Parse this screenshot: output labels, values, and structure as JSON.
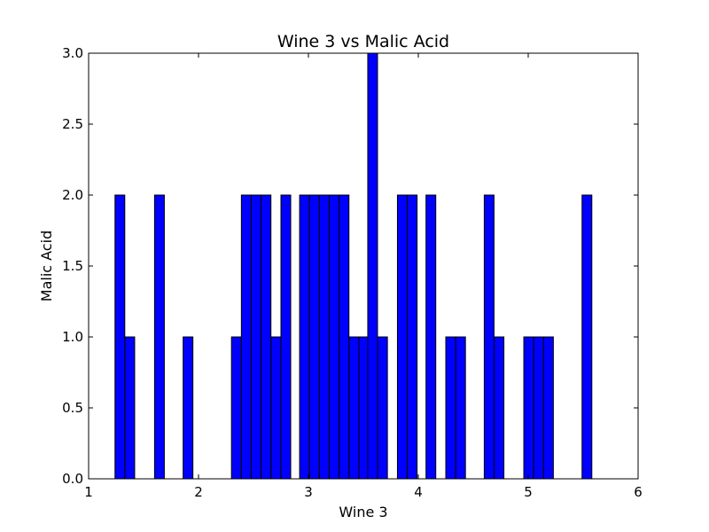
{
  "chart_data": {
    "type": "bar",
    "title": "Wine 3 vs Malic Acid",
    "xlabel": "Wine 3",
    "ylabel": "Malic Acid",
    "xlim": [
      1,
      6
    ],
    "ylim": [
      0,
      3
    ],
    "bin_width": 0.0889,
    "x_ticks": [
      "1",
      "2",
      "3",
      "4",
      "5",
      "6"
    ],
    "y_ticks": [
      "0.0",
      "0.5",
      "1.0",
      "1.5",
      "2.0",
      "2.5",
      "3.0"
    ],
    "grid": false,
    "bar_color": "#0000ff",
    "bins": [
      {
        "x": 1.24,
        "value": 2
      },
      {
        "x": 1.33,
        "value": 1
      },
      {
        "x": 1.6,
        "value": 2
      },
      {
        "x": 1.86,
        "value": 1
      },
      {
        "x": 2.3,
        "value": 1
      },
      {
        "x": 2.39,
        "value": 2
      },
      {
        "x": 2.48,
        "value": 2
      },
      {
        "x": 2.57,
        "value": 2
      },
      {
        "x": 2.66,
        "value": 1
      },
      {
        "x": 2.75,
        "value": 2
      },
      {
        "x": 2.92,
        "value": 2
      },
      {
        "x": 3.01,
        "value": 2
      },
      {
        "x": 3.1,
        "value": 2
      },
      {
        "x": 3.19,
        "value": 2
      },
      {
        "x": 3.28,
        "value": 2
      },
      {
        "x": 3.37,
        "value": 1
      },
      {
        "x": 3.46,
        "value": 1
      },
      {
        "x": 3.54,
        "value": 3
      },
      {
        "x": 3.63,
        "value": 1
      },
      {
        "x": 3.81,
        "value": 2
      },
      {
        "x": 3.9,
        "value": 2
      },
      {
        "x": 4.07,
        "value": 2
      },
      {
        "x": 4.25,
        "value": 1
      },
      {
        "x": 4.34,
        "value": 1
      },
      {
        "x": 4.6,
        "value": 2
      },
      {
        "x": 4.69,
        "value": 1
      },
      {
        "x": 4.96,
        "value": 1
      },
      {
        "x": 5.05,
        "value": 1
      },
      {
        "x": 5.14,
        "value": 1
      },
      {
        "x": 5.49,
        "value": 2
      }
    ]
  }
}
